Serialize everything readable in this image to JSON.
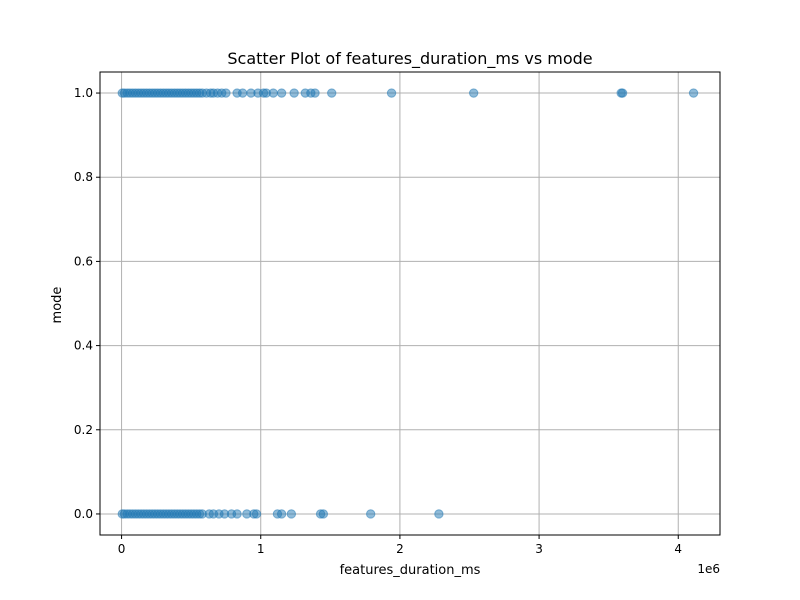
{
  "chart_data": {
    "type": "scatter",
    "title": "Scatter Plot of features_duration_ms vs mode",
    "xlabel": "features_duration_ms",
    "ylabel": "mode",
    "x_offset_label": "1e6",
    "xlim": [
      -155000,
      4300000
    ],
    "ylim": [
      -0.05,
      1.05
    ],
    "x_ticks": [
      0,
      1000000,
      2000000,
      3000000,
      4000000
    ],
    "x_tick_labels": [
      "0",
      "1",
      "2",
      "3",
      "4"
    ],
    "y_ticks": [
      0.0,
      0.2,
      0.4,
      0.6,
      0.8,
      1.0
    ],
    "y_tick_labels": [
      "0.0",
      "0.2",
      "0.4",
      "0.6",
      "0.8",
      "1.0"
    ],
    "grid": true,
    "color": "#1f77b4",
    "series": [
      {
        "points": [
          {
            "x": 5000,
            "y": 1
          },
          {
            "x": 20000,
            "y": 1
          },
          {
            "x": 40000,
            "y": 1
          },
          {
            "x": 60000,
            "y": 1
          },
          {
            "x": 80000,
            "y": 1
          },
          {
            "x": 100000,
            "y": 1
          },
          {
            "x": 120000,
            "y": 1
          },
          {
            "x": 140000,
            "y": 1
          },
          {
            "x": 160000,
            "y": 1
          },
          {
            "x": 180000,
            "y": 1
          },
          {
            "x": 200000,
            "y": 1
          },
          {
            "x": 220000,
            "y": 1
          },
          {
            "x": 240000,
            "y": 1
          },
          {
            "x": 260000,
            "y": 1
          },
          {
            "x": 280000,
            "y": 1
          },
          {
            "x": 300000,
            "y": 1
          },
          {
            "x": 320000,
            "y": 1
          },
          {
            "x": 340000,
            "y": 1
          },
          {
            "x": 360000,
            "y": 1
          },
          {
            "x": 380000,
            "y": 1
          },
          {
            "x": 400000,
            "y": 1
          },
          {
            "x": 420000,
            "y": 1
          },
          {
            "x": 440000,
            "y": 1
          },
          {
            "x": 460000,
            "y": 1
          },
          {
            "x": 480000,
            "y": 1
          },
          {
            "x": 500000,
            "y": 1
          },
          {
            "x": 520000,
            "y": 1
          },
          {
            "x": 540000,
            "y": 1
          },
          {
            "x": 560000,
            "y": 1
          },
          {
            "x": 580000,
            "y": 1
          },
          {
            "x": 610000,
            "y": 1
          },
          {
            "x": 640000,
            "y": 1
          },
          {
            "x": 660000,
            "y": 1
          },
          {
            "x": 690000,
            "y": 1
          },
          {
            "x": 720000,
            "y": 1
          },
          {
            "x": 750000,
            "y": 1
          },
          {
            "x": 830000,
            "y": 1
          },
          {
            "x": 870000,
            "y": 1
          },
          {
            "x": 930000,
            "y": 1
          },
          {
            "x": 980000,
            "y": 1
          },
          {
            "x": 1020000,
            "y": 1
          },
          {
            "x": 1040000,
            "y": 1
          },
          {
            "x": 1090000,
            "y": 1
          },
          {
            "x": 1150000,
            "y": 1
          },
          {
            "x": 1240000,
            "y": 1
          },
          {
            "x": 1320000,
            "y": 1
          },
          {
            "x": 1360000,
            "y": 1
          },
          {
            "x": 1390000,
            "y": 1
          },
          {
            "x": 1510000,
            "y": 1
          },
          {
            "x": 1940000,
            "y": 1
          },
          {
            "x": 2530000,
            "y": 1
          },
          {
            "x": 3590000,
            "y": 1
          },
          {
            "x": 3600000,
            "y": 1
          },
          {
            "x": 4110000,
            "y": 1
          },
          {
            "x": 5000,
            "y": 0
          },
          {
            "x": 20000,
            "y": 0
          },
          {
            "x": 40000,
            "y": 0
          },
          {
            "x": 60000,
            "y": 0
          },
          {
            "x": 80000,
            "y": 0
          },
          {
            "x": 100000,
            "y": 0
          },
          {
            "x": 120000,
            "y": 0
          },
          {
            "x": 140000,
            "y": 0
          },
          {
            "x": 160000,
            "y": 0
          },
          {
            "x": 180000,
            "y": 0
          },
          {
            "x": 200000,
            "y": 0
          },
          {
            "x": 220000,
            "y": 0
          },
          {
            "x": 240000,
            "y": 0
          },
          {
            "x": 260000,
            "y": 0
          },
          {
            "x": 280000,
            "y": 0
          },
          {
            "x": 300000,
            "y": 0
          },
          {
            "x": 320000,
            "y": 0
          },
          {
            "x": 340000,
            "y": 0
          },
          {
            "x": 360000,
            "y": 0
          },
          {
            "x": 380000,
            "y": 0
          },
          {
            "x": 400000,
            "y": 0
          },
          {
            "x": 420000,
            "y": 0
          },
          {
            "x": 440000,
            "y": 0
          },
          {
            "x": 460000,
            "y": 0
          },
          {
            "x": 480000,
            "y": 0
          },
          {
            "x": 500000,
            "y": 0
          },
          {
            "x": 520000,
            "y": 0
          },
          {
            "x": 540000,
            "y": 0
          },
          {
            "x": 560000,
            "y": 0
          },
          {
            "x": 580000,
            "y": 0
          },
          {
            "x": 630000,
            "y": 0
          },
          {
            "x": 660000,
            "y": 0
          },
          {
            "x": 700000,
            "y": 0
          },
          {
            "x": 740000,
            "y": 0
          },
          {
            "x": 790000,
            "y": 0
          },
          {
            "x": 830000,
            "y": 0
          },
          {
            "x": 900000,
            "y": 0
          },
          {
            "x": 950000,
            "y": 0
          },
          {
            "x": 970000,
            "y": 0
          },
          {
            "x": 1120000,
            "y": 0
          },
          {
            "x": 1150000,
            "y": 0
          },
          {
            "x": 1220000,
            "y": 0
          },
          {
            "x": 1430000,
            "y": 0
          },
          {
            "x": 1450000,
            "y": 0
          },
          {
            "x": 1790000,
            "y": 0
          },
          {
            "x": 2280000,
            "y": 0
          }
        ]
      }
    ]
  }
}
